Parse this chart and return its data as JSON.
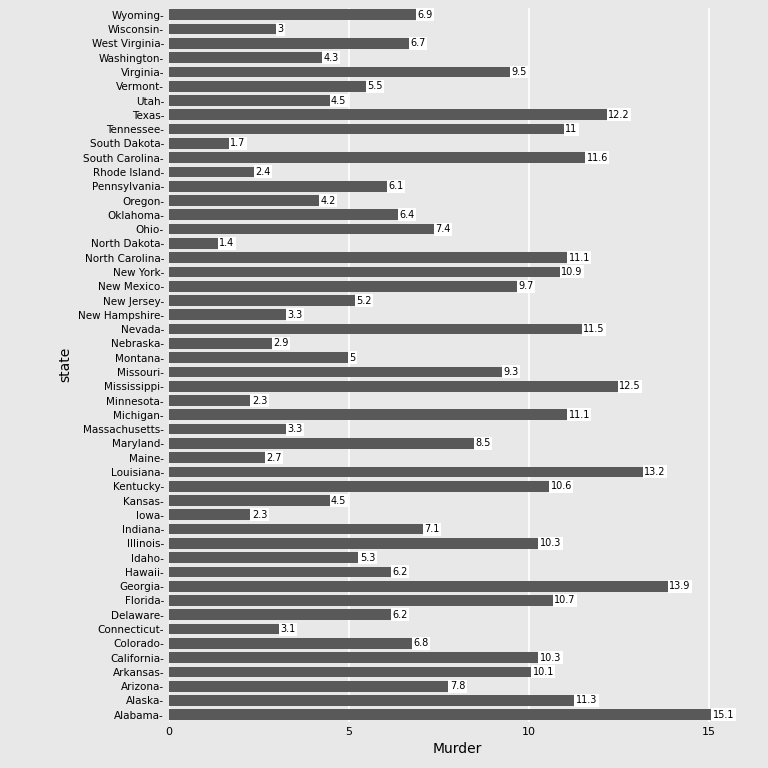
{
  "states": [
    "Alabama",
    "Alaska",
    "Arizona",
    "Arkansas",
    "California",
    "Colorado",
    "Connecticut",
    "Delaware",
    "Florida",
    "Georgia",
    "Hawaii",
    "Idaho",
    "Illinois",
    "Indiana",
    "Iowa",
    "Kansas",
    "Kentucky",
    "Louisiana",
    "Maine",
    "Maryland",
    "Massachusetts",
    "Michigan",
    "Minnesota",
    "Mississippi",
    "Missouri",
    "Montana",
    "Nebraska",
    "Nevada",
    "New Hampshire",
    "New Jersey",
    "New Mexico",
    "New York",
    "North Carolina",
    "North Dakota",
    "Ohio",
    "Oklahoma",
    "Oregon",
    "Pennsylvania",
    "Rhode Island",
    "South Carolina",
    "South Dakota",
    "Tennessee",
    "Texas",
    "Utah",
    "Vermont",
    "Virginia",
    "Washington",
    "West Virginia",
    "Wisconsin",
    "Wyoming"
  ],
  "murder": [
    15.1,
    11.3,
    7.8,
    10.1,
    10.3,
    6.8,
    3.1,
    6.2,
    10.7,
    13.9,
    6.2,
    5.3,
    10.3,
    7.1,
    2.3,
    4.5,
    10.6,
    13.2,
    2.7,
    8.5,
    3.3,
    11.1,
    2.3,
    12.5,
    9.3,
    5.0,
    2.9,
    11.5,
    3.3,
    5.2,
    9.7,
    10.9,
    11.1,
    1.4,
    7.4,
    6.4,
    4.2,
    6.1,
    2.4,
    11.6,
    1.7,
    11.0,
    12.2,
    4.5,
    5.5,
    9.5,
    4.3,
    6.7,
    3.0,
    6.9
  ],
  "bar_color": "#595959",
  "bg_color": "#e8e8e8",
  "panel_bg": "#e8e8e8",
  "xlabel": "Murder",
  "ylabel": "state",
  "xlim": [
    0,
    16
  ],
  "xticks": [
    0,
    5,
    10,
    15
  ],
  "grid_color": "#ffffff",
  "label_box_color": "#ffffff",
  "label_text_color": "#000000",
  "bar_height": 0.75,
  "figsize": [
    7.68,
    7.68
  ],
  "dpi": 100
}
